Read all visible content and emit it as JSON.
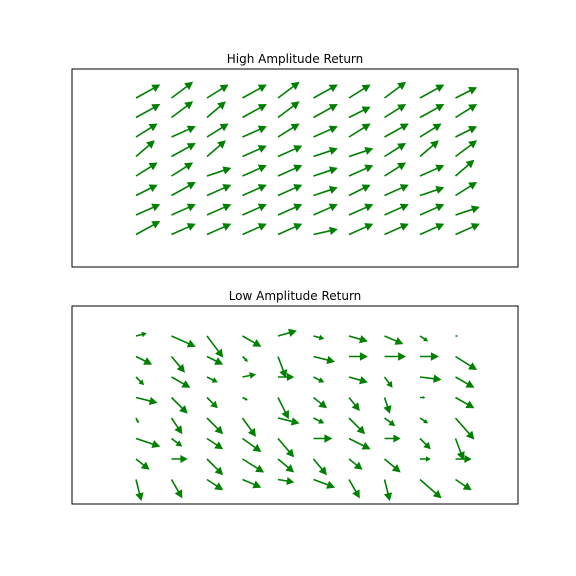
{
  "chart_data": [
    {
      "type": "quiver",
      "title": "High Amplitude Return",
      "xlabel": "",
      "ylabel": "",
      "axes_visible": false,
      "grid": false,
      "color": "#008000",
      "columns": 10,
      "rows": 8,
      "note_uv": "u/v listed row by row from top row to bottom row, left to right",
      "u": [
        0.9,
        0.8,
        0.8,
        0.9,
        0.8,
        0.9,
        0.8,
        0.8,
        0.9,
        0.8,
        0.9,
        0.8,
        0.7,
        0.9,
        0.8,
        0.9,
        0.8,
        0.8,
        0.9,
        0.8,
        0.8,
        0.9,
        0.8,
        0.9,
        0.8,
        0.9,
        0.8,
        0.9,
        0.8,
        0.8,
        0.7,
        0.9,
        0.7,
        0.9,
        0.9,
        0.9,
        0.9,
        0.8,
        0.7,
        0.8,
        0.8,
        0.8,
        0.9,
        0.9,
        0.9,
        0.9,
        0.9,
        0.8,
        0.9,
        0.7,
        0.8,
        0.9,
        0.9,
        0.9,
        0.9,
        0.9,
        0.8,
        0.9,
        0.9,
        0.8,
        0.9,
        0.9,
        0.9,
        0.9,
        0.9,
        0.9,
        0.9,
        0.9,
        0.9,
        0.9,
        0.9,
        0.9,
        0.9,
        0.9,
        0.9,
        0.9,
        0.9,
        0.9,
        0.9,
        0.9
      ],
      "v": [
        0.5,
        0.6,
        0.5,
        0.5,
        0.6,
        0.5,
        0.5,
        0.6,
        0.5,
        0.4,
        0.5,
        0.6,
        0.6,
        0.5,
        0.6,
        0.5,
        0.4,
        0.5,
        0.5,
        0.5,
        0.5,
        0.4,
        0.5,
        0.4,
        0.5,
        0.4,
        0.5,
        0.5,
        0.5,
        0.4,
        0.6,
        0.5,
        0.6,
        0.4,
        0.4,
        0.3,
        0.3,
        0.5,
        0.6,
        0.6,
        0.5,
        0.5,
        0.3,
        0.4,
        0.4,
        0.3,
        0.4,
        0.5,
        0.4,
        0.6,
        0.4,
        0.5,
        0.4,
        0.4,
        0.4,
        0.3,
        0.4,
        0.4,
        0.3,
        0.5,
        0.4,
        0.4,
        0.4,
        0.4,
        0.4,
        0.4,
        0.4,
        0.4,
        0.4,
        0.3,
        0.5,
        0.4,
        0.4,
        0.4,
        0.4,
        0.2,
        0.4,
        0.4,
        0.4,
        0.4
      ]
    },
    {
      "type": "quiver",
      "title": "Low Amplitude Return",
      "xlabel": "",
      "ylabel": "",
      "axes_visible": false,
      "grid": false,
      "color": "#008000",
      "columns": 10,
      "rows": 8,
      "note_uv": "u/v listed row by row from top row to bottom row, left to right",
      "u": [
        0.4,
        0.9,
        0.6,
        0.7,
        0.7,
        0.4,
        0.7,
        0.7,
        0.3,
        0.1,
        0.6,
        0.5,
        0.6,
        0.2,
        0.3,
        0.8,
        0.7,
        0.8,
        0.7,
        0.8,
        0.3,
        0.7,
        0.4,
        0.5,
        0.6,
        0.4,
        0.7,
        0.3,
        0.8,
        0.7,
        0.8,
        0.6,
        0.4,
        0.2,
        0.4,
        0.5,
        0.4,
        0.2,
        0.2,
        0.7,
        0.1,
        0.4,
        0.6,
        0.5,
        0.8,
        0.4,
        0.6,
        0.4,
        0.3,
        0.7,
        0.9,
        0.4,
        0.6,
        0.7,
        0.6,
        0.7,
        0.8,
        0.6,
        0.4,
        0.3,
        0.5,
        0.6,
        0.6,
        0.8,
        0.6,
        0.5,
        0.5,
        0.6,
        0.4,
        0.6,
        0.2,
        0.4,
        0.6,
        0.7,
        0.6,
        0.8,
        0.4,
        0.2,
        0.8,
        0.6
      ],
      "v": [
        0.1,
        -0.4,
        -0.8,
        -0.4,
        0.2,
        -0.1,
        -0.2,
        -0.3,
        -0.2,
        0.0,
        -0.3,
        -0.6,
        -0.3,
        -0.2,
        -0.8,
        -0.2,
        0.0,
        0.0,
        0.0,
        -0.5,
        -0.3,
        -0.4,
        -0.2,
        0.1,
        0.0,
        -0.2,
        -0.2,
        -0.4,
        -0.1,
        -0.4,
        -0.2,
        -0.6,
        -0.4,
        -0.1,
        -0.8,
        -0.4,
        -0.5,
        -0.6,
        0.0,
        -0.4,
        -0.2,
        -0.6,
        -0.6,
        -0.7,
        -0.2,
        -0.2,
        -0.6,
        -0.3,
        -0.2,
        -0.8,
        -0.3,
        -0.3,
        -0.4,
        -0.5,
        -0.7,
        0.0,
        -0.4,
        0.0,
        -0.4,
        -0.8,
        -0.4,
        0.0,
        -0.6,
        -0.5,
        -0.5,
        -0.6,
        -0.4,
        -0.5,
        0.0,
        0.0,
        -0.8,
        -0.7,
        -0.4,
        -0.3,
        -0.1,
        -0.3,
        -0.7,
        -0.8,
        -0.7,
        -0.4
      ]
    }
  ]
}
